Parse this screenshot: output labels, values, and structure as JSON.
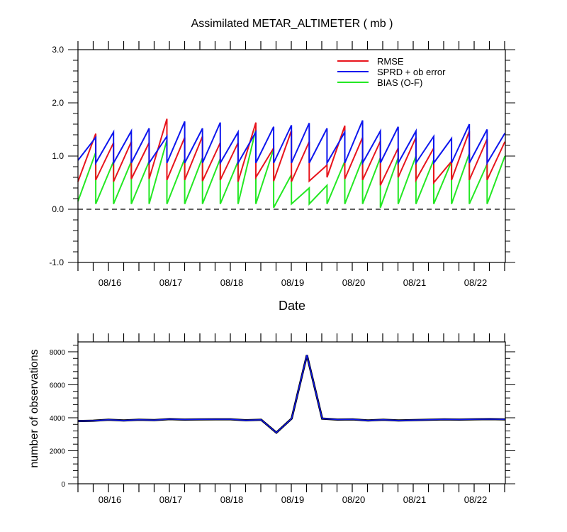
{
  "chart_data": [
    {
      "type": "line",
      "title": "Assimilated METAR_ALTIMETER ( mb )",
      "xlabel": "Date",
      "ylabel": "",
      "ylim": [
        -1.0,
        3.0
      ],
      "y_ticks": [
        "-1.0",
        "0.0",
        "1.0",
        "2.0",
        "3.0"
      ],
      "x_ticks": [
        "08/16",
        "08/17",
        "08/18",
        "08/19",
        "08/20",
        "08/21",
        "08/22"
      ],
      "legend_position": "top-right",
      "zero_line": "dashed",
      "colors": {
        "RMSE": "#e8141c",
        "SPRD + ob error": "#0d16ee",
        "BIAS (O-F)": "#23e823"
      },
      "series": [
        {
          "name": "RMSE",
          "color": "#e8141c",
          "segments": [
            [
              0.52,
              1.42
            ],
            [
              0.55,
              1.25
            ],
            [
              0.52,
              1.27
            ],
            [
              0.57,
              1.25
            ],
            [
              0.57,
              1.7
            ],
            [
              0.55,
              1.35
            ],
            [
              0.55,
              1.37
            ],
            [
              0.53,
              1.25
            ],
            [
              0.55,
              1.25
            ],
            [
              0.52,
              1.63
            ],
            [
              0.6,
              1.15
            ],
            [
              0.53,
              1.48
            ],
            [
              0.52,
              1.27
            ],
            [
              0.53,
              0.83
            ],
            [
              0.6,
              1.57
            ],
            [
              0.57,
              1.35
            ],
            [
              0.55,
              1.28
            ],
            [
              0.45,
              1.15
            ],
            [
              0.6,
              1.35
            ],
            [
              0.55,
              1.15
            ],
            [
              0.5,
              0.9
            ],
            [
              0.55,
              1.47
            ],
            [
              0.55,
              1.32
            ],
            [
              0.55,
              1.27
            ]
          ]
        },
        {
          "name": "SPRD + ob error",
          "color": "#0d16ee",
          "segments": [
            [
              0.92,
              1.35
            ],
            [
              0.87,
              1.45
            ],
            [
              0.87,
              1.47
            ],
            [
              0.87,
              1.52
            ],
            [
              0.87,
              1.37
            ],
            [
              0.87,
              1.65
            ],
            [
              0.87,
              1.52
            ],
            [
              0.87,
              1.63
            ],
            [
              0.87,
              1.45
            ],
            [
              0.87,
              1.45
            ],
            [
              0.87,
              1.55
            ],
            [
              0.87,
              1.58
            ],
            [
              0.87,
              1.62
            ],
            [
              0.87,
              1.52
            ],
            [
              0.87,
              1.45
            ],
            [
              0.87,
              1.67
            ],
            [
              0.87,
              1.47
            ],
            [
              0.87,
              1.55
            ],
            [
              0.87,
              1.47
            ],
            [
              0.87,
              1.37
            ],
            [
              0.87,
              1.33
            ],
            [
              0.87,
              1.6
            ],
            [
              0.87,
              1.5
            ],
            [
              0.87,
              1.43
            ]
          ]
        },
        {
          "name": "BIAS (O-F)",
          "color": "#23e823",
          "segments": [
            [
              0.15,
              1.07
            ],
            [
              0.1,
              0.9
            ],
            [
              0.1,
              0.9
            ],
            [
              0.1,
              0.9
            ],
            [
              0.1,
              1.3
            ],
            [
              0.1,
              0.95
            ],
            [
              0.1,
              0.97
            ],
            [
              0.1,
              0.95
            ],
            [
              0.1,
              0.9
            ],
            [
              0.1,
              1.5
            ],
            [
              0.1,
              1.13
            ],
            [
              0.03,
              0.65
            ],
            [
              0.1,
              0.4
            ],
            [
              0.1,
              0.45
            ],
            [
              0.1,
              0.9
            ],
            [
              0.1,
              0.95
            ],
            [
              0.1,
              0.97
            ],
            [
              0.03,
              0.97
            ],
            [
              0.1,
              1.0
            ],
            [
              0.1,
              0.93
            ],
            [
              0.1,
              0.9
            ],
            [
              0.1,
              1.05
            ],
            [
              0.1,
              0.85
            ],
            [
              0.1,
              1.0
            ]
          ]
        }
      ]
    },
    {
      "type": "line",
      "title": "",
      "xlabel": "",
      "ylabel": "number of observations",
      "ylim": [
        0,
        8600
      ],
      "y_ticks": [
        "0",
        "2000",
        "4000",
        "6000",
        "8000"
      ],
      "x_ticks": [
        "08/16",
        "08/17",
        "08/18",
        "08/19",
        "08/20",
        "08/21",
        "08/22"
      ],
      "colors": {
        "used": "#0d16ee",
        "available": "#000000"
      },
      "series": [
        {
          "color": "#0d16ee",
          "values": [
            3800,
            3820,
            3880,
            3840,
            3880,
            3860,
            3920,
            3890,
            3900,
            3910,
            3910,
            3850,
            3880,
            3100,
            3950,
            7800,
            3950,
            3890,
            3900,
            3840,
            3880,
            3840,
            3860,
            3880,
            3900,
            3890,
            3910,
            3920,
            3900
          ]
        }
      ]
    }
  ]
}
